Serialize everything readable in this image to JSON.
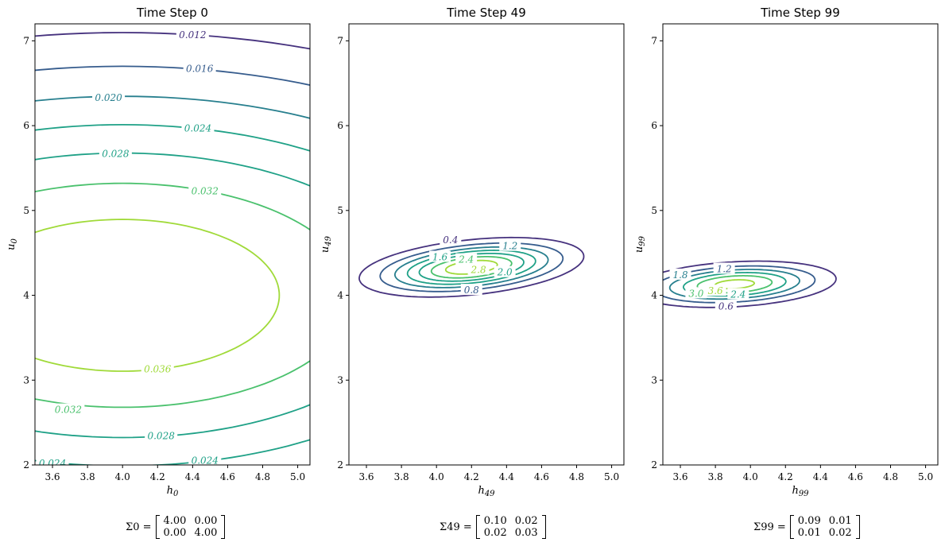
{
  "chart_data": [
    {
      "type": "contour",
      "title": "Time Step 0",
      "xlabel": "h_0",
      "ylabel": "u_0",
      "xlim": [
        3.5,
        5.07
      ],
      "ylim": [
        2.0,
        7.2
      ],
      "xticks": [
        "3.6",
        "3.8",
        "4.0",
        "4.2",
        "4.4",
        "4.6",
        "4.8",
        "5.0"
      ],
      "yticks": [
        "2",
        "3",
        "4",
        "5",
        "6",
        "7"
      ],
      "mean": [
        4.0,
        4.0
      ],
      "cov": [
        [
          4.0,
          0.0
        ],
        [
          0.0,
          4.0
        ]
      ],
      "contour_levels": [
        "0.012",
        "0.016",
        "0.020",
        "0.024",
        "0.028",
        "0.032",
        "0.036"
      ],
      "contour_labels": [
        {
          "text": "0.012",
          "x": 4.4,
          "y": 7.07
        },
        {
          "text": "0.016",
          "x": 4.44,
          "y": 6.67
        },
        {
          "text": "0.020",
          "x": 3.92,
          "y": 6.33
        },
        {
          "text": "0.024",
          "x": 4.43,
          "y": 5.97
        },
        {
          "text": "0.028",
          "x": 3.96,
          "y": 5.67
        },
        {
          "text": "0.032",
          "x": 4.47,
          "y": 5.23
        },
        {
          "text": "0.036",
          "x": 4.2,
          "y": 3.13
        },
        {
          "text": "0.032",
          "x": 3.69,
          "y": 2.65
        },
        {
          "text": "0.028",
          "x": 4.22,
          "y": 2.34
        },
        {
          "text": "0.024",
          "x": 4.47,
          "y": 2.05
        },
        {
          "text": "0.024",
          "x": 3.6,
          "y": 2.02
        }
      ],
      "covariance_label": "Σ0 =",
      "covariance_text": [
        [
          "4.00",
          "0.00"
        ],
        [
          "0.00",
          "4.00"
        ]
      ]
    },
    {
      "type": "contour",
      "title": "Time Step 49",
      "xlabel": "h_49",
      "ylabel": "u_49",
      "xlim": [
        3.5,
        5.07
      ],
      "ylim": [
        2.0,
        7.2
      ],
      "xticks": [
        "3.6",
        "3.8",
        "4.0",
        "4.2",
        "4.4",
        "4.6",
        "4.8",
        "5.0"
      ],
      "yticks": [
        "2",
        "3",
        "4",
        "5",
        "6",
        "7"
      ],
      "mean": [
        4.2,
        4.33
      ],
      "cov": [
        [
          0.1,
          0.02
        ],
        [
          0.02,
          0.03
        ]
      ],
      "contour_levels": [
        "0.4",
        "0.8",
        "1.2",
        "1.6",
        "2.0",
        "2.4",
        "2.8"
      ],
      "contour_labels": [
        {
          "text": "0.4",
          "x": 4.08,
          "y": 4.65
        },
        {
          "text": "1.2",
          "x": 4.42,
          "y": 4.58
        },
        {
          "text": "1.6",
          "x": 4.02,
          "y": 4.45
        },
        {
          "text": "2.4",
          "x": 4.17,
          "y": 4.42
        },
        {
          "text": "2.8",
          "x": 4.24,
          "y": 4.3
        },
        {
          "text": "2.0",
          "x": 4.39,
          "y": 4.27
        },
        {
          "text": "0.8",
          "x": 4.2,
          "y": 4.06
        }
      ],
      "covariance_label": "Σ49 =",
      "covariance_text": [
        [
          "0.10",
          "0.02"
        ],
        [
          "0.02",
          "0.03"
        ]
      ]
    },
    {
      "type": "contour",
      "title": "Time Step 99",
      "xlabel": "h_99",
      "ylabel": "u_99",
      "xlim": [
        3.5,
        5.07
      ],
      "ylim": [
        2.0,
        7.2
      ],
      "xticks": [
        "3.6",
        "3.8",
        "4.0",
        "4.2",
        "4.4",
        "4.6",
        "4.8",
        "5.0"
      ],
      "yticks": [
        "2",
        "3",
        "4",
        "5",
        "6",
        "7"
      ],
      "mean": [
        3.91,
        4.13
      ],
      "cov": [
        [
          0.09,
          0.01
        ],
        [
          0.01,
          0.02
        ]
      ],
      "contour_levels": [
        "0.6",
        "1.2",
        "1.8",
        "2.4",
        "3.0",
        "3.6"
      ],
      "contour_labels": [
        {
          "text": "1.2",
          "x": 3.85,
          "y": 4.31
        },
        {
          "text": "1.8",
          "x": 3.6,
          "y": 4.24
        },
        {
          "text": "3.0",
          "x": 3.69,
          "y": 4.02
        },
        {
          "text": "3.6",
          "x": 3.8,
          "y": 4.05
        },
        {
          "text": "2.4",
          "x": 3.93,
          "y": 4.01
        },
        {
          "text": "0.6",
          "x": 3.86,
          "y": 3.87
        }
      ],
      "covariance_label": "Σ99 =",
      "covariance_text": [
        [
          "0.09",
          "0.01"
        ],
        [
          "0.01",
          "0.02"
        ]
      ]
    }
  ],
  "colors": {
    "viridis": [
      "#46327e",
      "#365c8d",
      "#277f8e",
      "#1fa187",
      "#4ac16d",
      "#a0da39"
    ],
    "mid": "#2c728e",
    "bright": "#bddf26"
  }
}
